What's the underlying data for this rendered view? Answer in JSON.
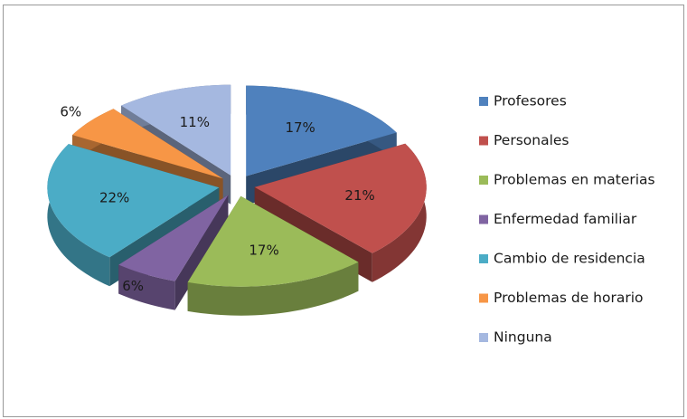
{
  "chart_data": {
    "type": "pie",
    "categories": [
      "Profesores",
      "Personales",
      "Problemas en materias",
      "Enfermedad familiar",
      "Cambio de residencia",
      "Problemas de horario",
      "Ninguna"
    ],
    "values": [
      17,
      21,
      17,
      6,
      22,
      6,
      11
    ],
    "value_labels": [
      "17%",
      "21%",
      "17%",
      "6%",
      "22%",
      "6%",
      "11%"
    ],
    "colors": [
      "#4f81bd",
      "#c0504d",
      "#9bbb59",
      "#8064a2",
      "#4bacc6",
      "#f79646",
      "#a5b8e0"
    ],
    "legend": "right"
  }
}
